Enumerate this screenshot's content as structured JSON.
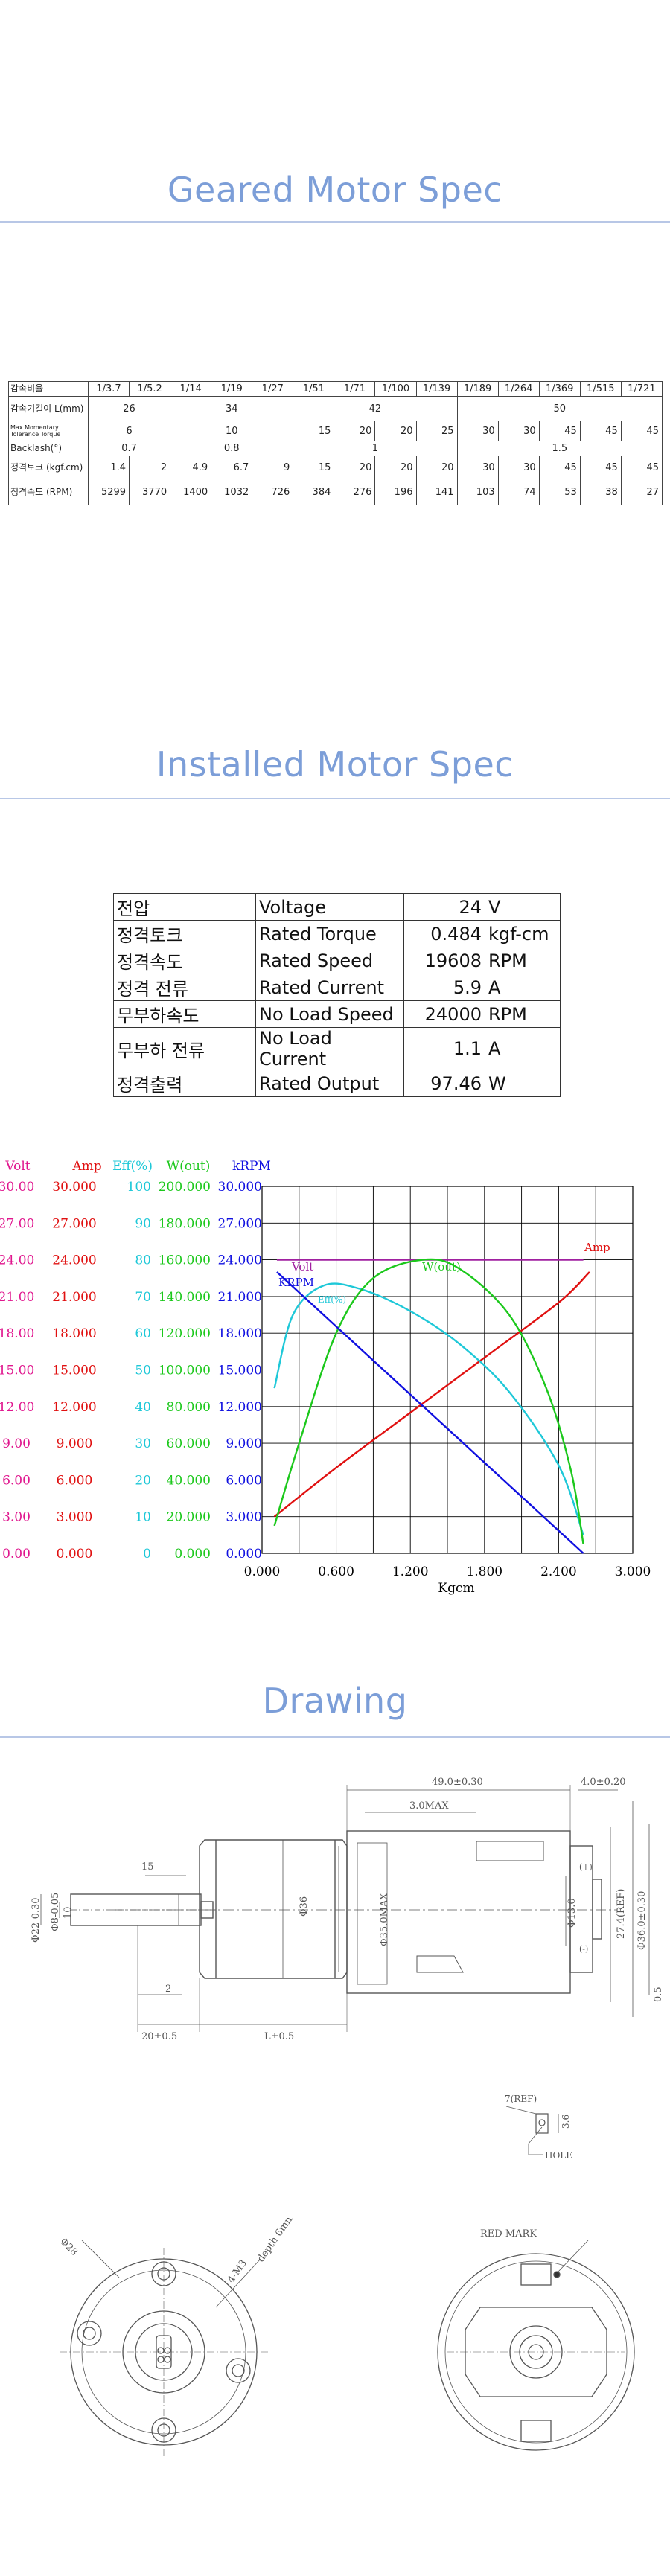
{
  "sections": {
    "gear": "Geared Motor Spec",
    "motor": "Installed Motor Spec",
    "drawing": "Drawing"
  },
  "gear_table": {
    "ratio_label": "감속비율",
    "ratios": [
      "1/3.7",
      "1/5.2",
      "1/14",
      "1/19",
      "1/27",
      "1/51",
      "1/71",
      "1/100",
      "1/139",
      "1/189",
      "1/264",
      "1/369",
      "1/515",
      "1/721"
    ],
    "length_label": "감속기길이 L(mm)",
    "lengths": [
      "26",
      "34",
      "42",
      "50"
    ],
    "torque_label": "Max Momentary Tolerance Torque",
    "torques": [
      "6",
      "10",
      "15",
      "20",
      "20",
      "25",
      "30",
      "30",
      "45",
      "45",
      "45"
    ],
    "backlash_label": "Backlash(°)",
    "backlash": [
      "0.7",
      "0.8",
      "1",
      "1.5"
    ],
    "rated_torque_label": "정격토크 (kgf.cm)",
    "rated_torque": [
      "1.4",
      "2",
      "4.9",
      "6.7",
      "9",
      "15",
      "20",
      "20",
      "20",
      "30",
      "30",
      "45",
      "45",
      "45"
    ],
    "rated_speed_label": "정격속도 (RPM)",
    "rated_speed": [
      "5299",
      "3770",
      "1400",
      "1032",
      "726",
      "384",
      "276",
      "196",
      "141",
      "103",
      "74",
      "53",
      "38",
      "27"
    ]
  },
  "motor_table": [
    {
      "kr": "전압",
      "en": "Voltage",
      "val": "24",
      "unit": "V"
    },
    {
      "kr": "정격토크",
      "en": "Rated Torque",
      "val": "0.484",
      "unit": "kgf-cm"
    },
    {
      "kr": "정격속도",
      "en": "Rated Speed",
      "val": "19608",
      "unit": "RPM"
    },
    {
      "kr": "정격 전류",
      "en": "Rated Current",
      "val": "5.9",
      "unit": "A"
    },
    {
      "kr": "무부하속도",
      "en": "No Load Speed",
      "val": "24000",
      "unit": "RPM"
    },
    {
      "kr": "무부하 전류",
      "en": "No Load Current",
      "val": "1.1",
      "unit": "A"
    },
    {
      "kr": "정격출력",
      "en": "Rated Output",
      "val": "97.46",
      "unit": "W"
    }
  ],
  "chart_data": {
    "type": "line",
    "xlabel": "Kgcm",
    "x_ticks": [
      "0.000",
      "0.600",
      "1.200",
      "1.800",
      "2.400",
      "3.000"
    ],
    "xlim": [
      0,
      3.0
    ],
    "axes": [
      {
        "name": "Volt",
        "color": "#e0168e",
        "ticks": [
          "30.00",
          "27.00",
          "24.00",
          "21.00",
          "18.00",
          "15.00",
          "12.00",
          "9.00",
          "6.00",
          "3.00",
          "0.00"
        ]
      },
      {
        "name": "Amp",
        "color": "#e01010",
        "ticks": [
          "30.000",
          "27.000",
          "24.000",
          "21.000",
          "18.000",
          "15.000",
          "12.000",
          "9.000",
          "6.000",
          "3.000",
          "0.000"
        ]
      },
      {
        "name": "Eff(%)",
        "color": "#1ec8d8",
        "ticks": [
          "100",
          "90",
          "80",
          "70",
          "60",
          "50",
          "40",
          "30",
          "20",
          "10",
          "0"
        ]
      },
      {
        "name": "W(out)",
        "color": "#1cc81c",
        "ticks": [
          "200.000",
          "180.000",
          "160.000",
          "140.000",
          "120.000",
          "100.000",
          "80.000",
          "60.000",
          "40.000",
          "20.000",
          "0.000"
        ]
      },
      {
        "name": "kRPM",
        "color": "#1010e0",
        "ticks": [
          "30.000",
          "27.000",
          "24.000",
          "21.000",
          "18.000",
          "15.000",
          "12.000",
          "9.000",
          "6.000",
          "3.000",
          "0.000"
        ]
      }
    ],
    "series": [
      {
        "name": "Volt",
        "color": "#a020a0",
        "x": [
          0.12,
          2.6
        ],
        "y": [
          24,
          24
        ]
      },
      {
        "name": "Amp",
        "color": "#e01010",
        "x": [
          0.1,
          0.6,
          1.2,
          1.8,
          2.4,
          2.65
        ],
        "y": [
          3.0,
          7.0,
          11.5,
          16.0,
          20.5,
          23.0
        ]
      },
      {
        "name": "Eff",
        "color": "#1ec8d8",
        "x": [
          0.1,
          0.25,
          0.5,
          0.8,
          1.2,
          1.6,
          2.0,
          2.4,
          2.6
        ],
        "y": [
          45,
          65,
          73,
          72,
          66,
          57,
          44,
          24,
          5
        ]
      },
      {
        "name": "W(out)",
        "color": "#1cc81c",
        "x": [
          0.1,
          0.3,
          0.6,
          0.9,
          1.3,
          1.6,
          2.0,
          2.3,
          2.5,
          2.6
        ],
        "y": [
          15,
          60,
          120,
          150,
          160,
          155,
          130,
          90,
          45,
          5
        ]
      },
      {
        "name": "kRPM",
        "color": "#1010e0",
        "x": [
          0.12,
          2.6
        ],
        "y": [
          23,
          0
        ]
      }
    ],
    "curve_labels": {
      "amp": "Amp",
      "volt": "Volt",
      "krpm": "KRPM",
      "eff": "Eff(%)",
      "wout": "W(out)"
    }
  },
  "drawing": {
    "dims_top": [
      "49.0±0.30",
      "4.0±0.20",
      "3.0MAX"
    ],
    "dims_left": [
      "15",
      "Φ22-0.30",
      "Φ8-0.05",
      "10",
      "Φ36",
      "Φ35.0MAX"
    ],
    "dims_bottom": [
      "2",
      "20±0.5",
      "L±0.5"
    ],
    "dims_right": [
      "Φ13.0",
      "27.4(REF)",
      "Φ36.0±0.30",
      "0.5"
    ],
    "terminal": [
      "(+)",
      "(-)"
    ],
    "terminal_detail": [
      "7(REF)",
      "3.6",
      "HOLE"
    ],
    "front": [
      "Φ28",
      "4-M3",
      "depth 6mm"
    ],
    "rear": [
      "RED MARK"
    ]
  }
}
